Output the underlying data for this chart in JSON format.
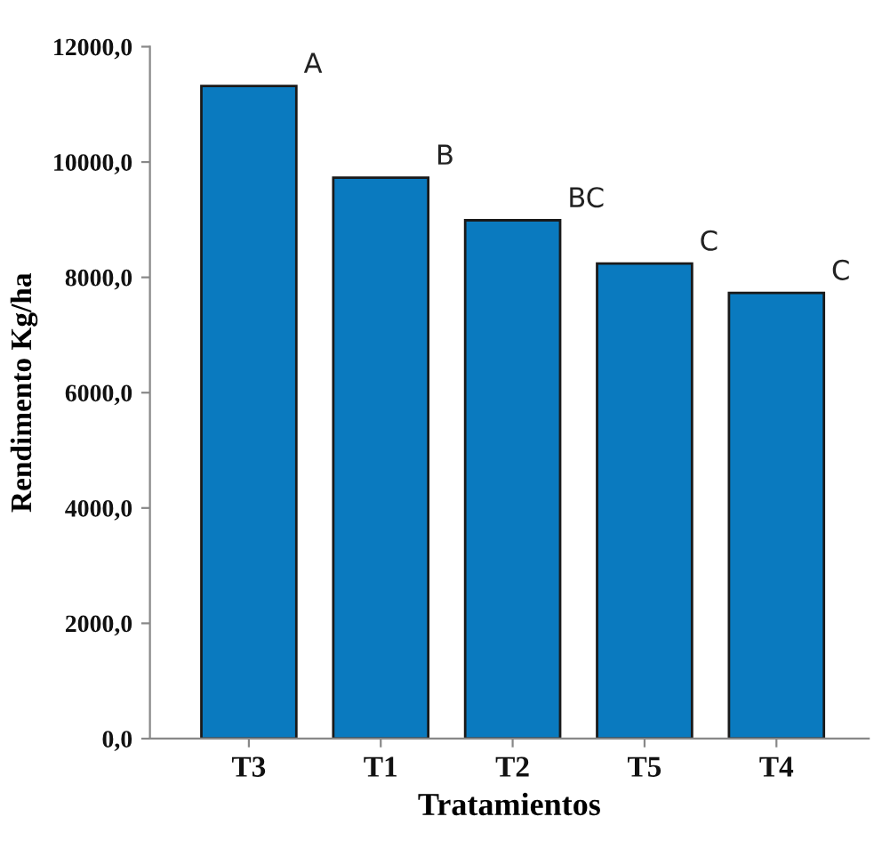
{
  "chart_data": {
    "type": "bar",
    "xlabel": "Tratamientos",
    "ylabel": "Rendimento Kg/ha",
    "categories": [
      "T3",
      "T1",
      "T2",
      "T5",
      "T4"
    ],
    "values": [
      11320,
      9730,
      8990,
      8240,
      7730
    ],
    "color": "#0a7abf",
    "ylim": [
      0,
      12000
    ],
    "yticks": [
      {
        "value": 0,
        "label": "0,0"
      },
      {
        "value": 2000,
        "label": "2000,0"
      },
      {
        "value": 4000,
        "label": "4000,0"
      },
      {
        "value": 6000,
        "label": "6000,0"
      },
      {
        "value": 8000,
        "label": "8000,0"
      },
      {
        "value": 10000,
        "label": "10000,0"
      },
      {
        "value": 12000,
        "label": "12000,0"
      }
    ],
    "annotations": [
      {
        "text": "A",
        "x": "T3",
        "y": 11320
      },
      {
        "text": "B",
        "x": "T1",
        "y": 9730
      },
      {
        "text": "BC",
        "x": "T2",
        "y": 8990
      },
      {
        "text": "C",
        "x": "T5",
        "y": 8240
      },
      {
        "text": "C",
        "x": "T4",
        "y": 7730
      }
    ],
    "grid": false,
    "legend": false
  }
}
